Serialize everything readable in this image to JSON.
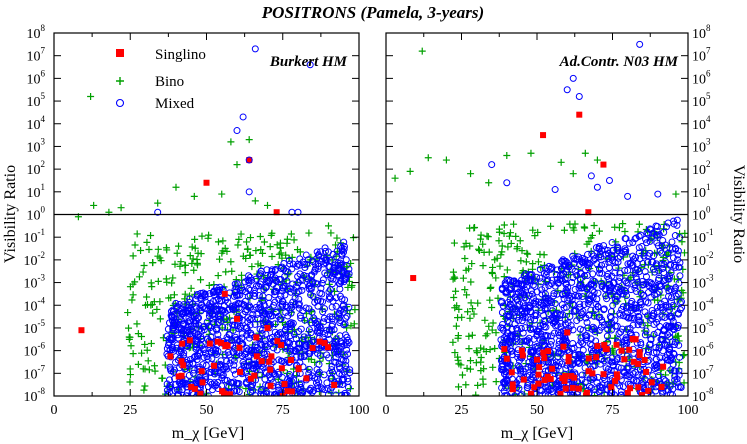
{
  "chart_data": {
    "type": "scatter",
    "title": "POSITRONS (Pamela, 3-years)",
    "xlabel": "m_χ [GeV]",
    "ylabel": "Visibility Ratio",
    "xlim": [
      0,
      100
    ],
    "ylim_log10": [
      -8,
      8
    ],
    "x_ticks": [
      "0",
      "25",
      "50",
      "75",
      "100"
    ],
    "y_tick_exponents": [
      "-8",
      "-7",
      "-6",
      "-5",
      "-4",
      "-3",
      "-2",
      "-1",
      "0",
      "1",
      "2",
      "3",
      "4",
      "5",
      "6",
      "7",
      "8"
    ],
    "y_tick_base": "10",
    "reference_line_y": 1,
    "legend": {
      "placement": "top-left",
      "entries": [
        {
          "name": "Singlino",
          "marker": "filled-square",
          "color": "#ff0000"
        },
        {
          "name": "Bino",
          "marker": "plus",
          "color": "#00a000"
        },
        {
          "name": "Mixed",
          "marker": "open-circle",
          "color": "#0000ff"
        }
      ]
    },
    "panels": [
      {
        "label": "Burkert HM",
        "series": [
          {
            "name": "Singlino",
            "x": [
              9,
              50,
              64,
              73,
              75,
              78,
              56,
              60,
              70,
              45,
              48
            ],
            "y": [
              -5.1,
              1.4,
              2.4,
              0.1,
              -8,
              -7.8,
              -3.5,
              -4.6,
              -5,
              -7.6,
              -7.9
            ]
          },
          {
            "name": "Bino",
            "x": [
              8,
              12,
              13,
              18,
              22,
              30,
              34,
              40,
              46,
              55,
              58,
              60,
              64,
              66,
              70,
              90,
              96
            ],
            "y": [
              -0.1,
              5.2,
              0.4,
              0.1,
              0.3,
              -4,
              0.5,
              1.2,
              0.8,
              0.9,
              3.2,
              2.2,
              3.3,
              0.6,
              0.4,
              -0.5,
              -2.3
            ]
          },
          {
            "name": "Mixed",
            "x": [
              34,
              60,
              62,
              64,
              64,
              66,
              78,
              80,
              84
            ],
            "y": [
              0.1,
              3.7,
              4.3,
              2.4,
              1,
              7.3,
              0.1,
              0.1,
              6.6
            ]
          }
        ]
      },
      {
        "label": "Ad.Contr. N03 HM",
        "series": [
          {
            "name": "Singlino",
            "x": [
              9,
              52,
              64,
              72,
              67,
              45,
              50,
              55,
              60,
              70,
              78,
              84,
              88,
              42,
              48
            ],
            "y": [
              -2.8,
              3.5,
              4.4,
              2.2,
              0.1,
              -6,
              -6.4,
              -6.8,
              -5.2,
              -5.8,
              -6,
              -6.2,
              -7.4,
              -7.7,
              -7.9
            ]
          },
          {
            "name": "Bino",
            "x": [
              3,
              8,
              12,
              14,
              20,
              28,
              34,
              40,
              48,
              58,
              62,
              66,
              70,
              96,
              98
            ],
            "y": [
              1.6,
              1.9,
              7.2,
              2.5,
              2.4,
              1.8,
              1.4,
              2.6,
              2.7,
              2.3,
              1.8,
              2.7,
              2.4,
              0.9,
              -1.2
            ]
          },
          {
            "name": "Mixed",
            "x": [
              35,
              40,
              56,
              60,
              62,
              64,
              68,
              70,
              74,
              80,
              84,
              90
            ],
            "y": [
              2.2,
              1.4,
              1.1,
              5.5,
              6,
              5.2,
              1.7,
              1.2,
              1.5,
              0.8,
              7.5,
              0.9
            ]
          }
        ]
      }
    ]
  }
}
